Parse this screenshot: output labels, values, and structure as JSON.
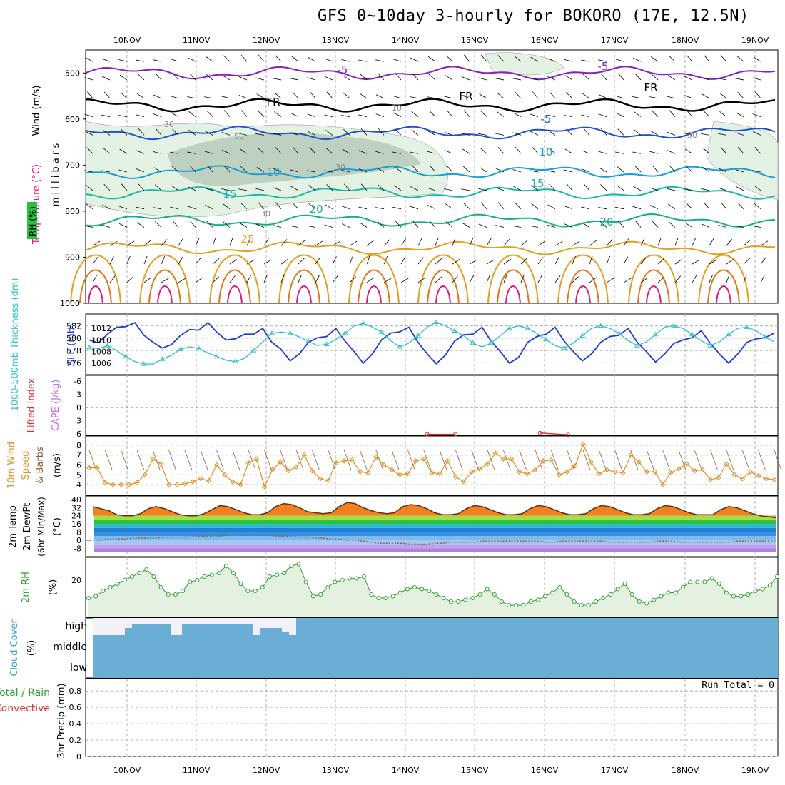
{
  "title": "GFS 0~10day 3-hourly for BOKORO (17E, 12.5N)",
  "date_labels": [
    "10NOV",
    "11NOV",
    "12NOV",
    "13NOV",
    "14NOV",
    "15NOV",
    "16NOV",
    "17NOV",
    "18NOV",
    "19NOV"
  ],
  "colors": {
    "wind_purple": "#8b1fb8",
    "freezing_black": "#000000",
    "temp_blue": "#1e50d0",
    "temp_cyan": "#14a0d8",
    "temp_teal": "#18b8a8",
    "temp_green": "#14b088",
    "temp_orange": "#e0a020",
    "temp_dark_orange": "#e07818",
    "temp_magenta": "#e01880",
    "rh_fill_light": "#e4f2e4",
    "rh_fill_dark": "#b4c8b8",
    "slp_line": "#1e3ed0",
    "thickness_line": "#30c0c8",
    "wind_speed_line": "#e09020",
    "wind_barbs": "#8b6040",
    "rh2m_line": "#30a030",
    "rh2m_fill": "#e4f0e0",
    "cloud_fill": "#6aaed6",
    "cloud_clear": "#f4f0f8",
    "grid_dash": "#b0b0b0",
    "zero_line": "#e04040"
  },
  "chart_data": [
    {
      "panel": "upper-air",
      "type": "heatmap",
      "y_axis": {
        "ticks": [
          500,
          600,
          700,
          800,
          900,
          1000
        ],
        "label": "m i l l i b a r s",
        "reversed": true
      },
      "side_labels": {
        "wind": "Wind (m/s)",
        "temperature": "Temperature (°C)",
        "rh": "RH (%)"
      },
      "contour_labels": {
        "temperature": [
          "-5",
          "-5",
          "FR",
          "FR",
          "FR",
          "-5",
          "10",
          "10",
          "15",
          "15",
          "20",
          "20",
          "25"
        ],
        "rh": [
          "30",
          "30",
          "50",
          "10",
          "30",
          "30"
        ]
      },
      "series": [
        {
          "name": "-5",
          "level_mb": 500
        },
        {
          "name": "FR",
          "level_mb": 570
        },
        {
          "name": "-5",
          "level_mb": 630
        },
        {
          "name": "10",
          "level_mb": 715
        },
        {
          "name": "15",
          "level_mb": 760
        },
        {
          "name": "20",
          "level_mb": 820
        },
        {
          "name": "25",
          "level_mb": 880
        }
      ]
    },
    {
      "panel": "slp-thickness",
      "type": "line",
      "labels": {
        "thickness": "1000-500mb Thickness (dm)",
        "slp": "SLP (mb)"
      },
      "left_ticks": [
        576,
        578,
        580,
        582
      ],
      "right_ticks": [
        1006,
        1008,
        1010,
        1012
      ],
      "series": [
        {
          "name": "SLP (mb)",
          "axis": "right",
          "values": [
            1010.0,
            1009.5,
            1011.0,
            1012.2,
            1012.3,
            1013.0,
            1010.8,
            1009.6,
            1008.6,
            1009.2,
            1010.8,
            1011.8,
            1011.7,
            1013.0,
            1011.3,
            1010.0,
            1010.2,
            1011.0,
            1011.0,
            1012.0,
            1009.6,
            1008.4,
            1006.4,
            1007.6,
            1009.6,
            1010.4,
            1010.6,
            1012.0,
            1009.8,
            1008.0,
            1006.0,
            1007.6,
            1010.0,
            1011.2,
            1011.4,
            1012.2,
            1009.6,
            1007.6,
            1005.9,
            1007.4,
            1009.8,
            1010.9,
            1011.0,
            1012.2,
            1009.8,
            1008.0,
            1006.0,
            1007.0,
            1009.6,
            1010.6,
            1011.0,
            1012.2,
            1009.8,
            1008.0,
            1006.4,
            1007.6,
            1009.6,
            1010.6,
            1010.8,
            1012.0,
            1009.6,
            1008.0,
            1006.2,
            1007.6,
            1009.4,
            1010.0,
            1010.4,
            1011.6,
            1009.4,
            1007.6,
            1006.0,
            1007.6,
            1009.6,
            1010.2,
            1010.4,
            1011.2
          ]
        },
        {
          "name": "Thickness (dm)",
          "axis": "left",
          "values": [
            578.5,
            578.3,
            578.8,
            578.0,
            577.0,
            576.2,
            575.8,
            575.8,
            576.6,
            577.2,
            578.2,
            578.6,
            578.3,
            577.6,
            577.0,
            576.4,
            576.2,
            576.7,
            578.0,
            579.4,
            580.8,
            581.0,
            580.8,
            580.2,
            579.5,
            578.8,
            579.0,
            579.8,
            580.8,
            582.0,
            582.4,
            581.8,
            581.0,
            579.6,
            578.6,
            579.2,
            580.4,
            581.8,
            582.6,
            582.0,
            581.2,
            580.4,
            579.2,
            578.6,
            579.2,
            580.4,
            581.6,
            582.0,
            581.6,
            580.8,
            579.8,
            578.8,
            578.4,
            579.2,
            580.4,
            581.6,
            582.0,
            581.6,
            580.8,
            579.6,
            578.8,
            579.4,
            580.6,
            581.8,
            582.0,
            581.6,
            580.6,
            579.6,
            578.8,
            579.4,
            580.6,
            581.6,
            581.8,
            581.2,
            580.2,
            579.4
          ]
        }
      ]
    },
    {
      "panel": "lifted-index-cape",
      "type": "line",
      "labels": {
        "li": "Lifted Index",
        "cape": "CAPE (J/kg)"
      },
      "ticks": [
        -6,
        -3,
        0,
        3,
        6
      ],
      "ticks_text": [
        "-6",
        "-3",
        "0",
        "3",
        "6"
      ],
      "series": [
        {
          "name": "Lifted Index",
          "points": [
            [
              24,
              6.1
            ],
            [
              26,
              6.1
            ],
            [
              32,
              5.8
            ],
            [
              34,
              6.2
            ]
          ]
        }
      ]
    },
    {
      "panel": "10m-wind",
      "type": "line",
      "labels": {
        "line1": "10m Wind",
        "line2": "Speed",
        "line3": "& Barbs",
        "unit": "(m/s)"
      },
      "ticks": [
        4,
        5,
        6,
        7,
        8
      ],
      "series": [
        {
          "name": "10m Wind Speed",
          "values": [
            5.7,
            5.7,
            4.2,
            4.0,
            4.0,
            4.0,
            4.2,
            5.0,
            6.6,
            6.1,
            4.0,
            4.0,
            4.1,
            4.3,
            4.6,
            4.4,
            6.0,
            5.0,
            4.3,
            4.0,
            6.2,
            6.6,
            3.8,
            5.5,
            6.3,
            5.4,
            5.8,
            7.0,
            5.4,
            4.6,
            4.4,
            6.2,
            6.4,
            6.5,
            5.3,
            5.2,
            6.8,
            6.0,
            5.5,
            5.0,
            5.1,
            6.4,
            6.6,
            5.2,
            5.1,
            6.4,
            4.8,
            4.3,
            5.3,
            5.6,
            6.1,
            7.2,
            6.6,
            6.6,
            5.3,
            5.1,
            5.5,
            6.4,
            6.5,
            5.0,
            5.3,
            5.9,
            8.1,
            6.3,
            5.1,
            5.5,
            5.3,
            5.2,
            7.0,
            6.3,
            5.3,
            5.3,
            4.0,
            5.2,
            5.6,
            6.1,
            5.4,
            5.5,
            4.5,
            4.7,
            6.1,
            5.0,
            4.6,
            5.3,
            4.9,
            4.6,
            4.5
          ]
        }
      ]
    },
    {
      "panel": "2m-temp",
      "type": "area",
      "labels": {
        "line1": "2m Temp",
        "line2": "2m DewPt",
        "line3": "(6hr Min/Max)",
        "unit": "(°C)"
      },
      "ticks": [
        -8,
        0,
        8,
        16,
        24,
        32,
        40
      ],
      "series": [
        {
          "name": "2m Temp",
          "values": [
            33,
            31,
            29,
            25,
            24,
            24,
            26,
            31,
            33,
            31,
            28,
            25,
            24,
            24,
            26,
            30,
            34,
            33,
            30,
            27,
            25,
            25,
            27,
            33,
            36,
            35,
            32,
            28,
            27,
            26,
            27,
            33,
            37,
            36,
            32,
            29,
            27,
            26,
            27,
            33,
            35,
            34,
            31,
            27,
            25,
            25,
            26,
            31,
            34,
            33,
            30,
            27,
            25,
            25,
            26,
            31,
            34,
            33,
            30,
            27,
            25,
            25,
            26,
            31,
            34,
            33,
            30,
            27,
            25,
            25,
            26,
            31,
            34,
            33,
            30,
            27,
            25,
            25,
            25,
            30,
            33,
            32,
            29,
            26,
            24,
            23,
            22
          ]
        },
        {
          "name": "2m DewPt",
          "values": [
            0,
            0,
            1,
            1,
            1,
            2,
            2,
            2,
            2,
            3,
            3,
            3,
            3,
            4,
            4,
            4,
            4,
            5,
            5,
            5,
            5,
            5,
            5,
            4,
            4,
            4,
            3,
            3,
            2,
            2,
            1,
            1,
            0,
            0,
            -1,
            -2,
            -3,
            -3,
            -3,
            -3,
            -4,
            -4,
            -4,
            -3,
            -3,
            -2,
            -2,
            -2,
            -2,
            -1,
            -1,
            -1,
            -1,
            -1,
            -1,
            -1,
            -1,
            -2,
            -2,
            -1,
            -1,
            -1,
            -1,
            -1,
            -1,
            -2,
            -2,
            -2,
            -2,
            -2,
            -2,
            -1,
            -1,
            -1,
            -2,
            -2,
            -2,
            -2,
            -2,
            -2,
            -2,
            -1,
            -1,
            -1,
            -1,
            -1,
            -1
          ]
        }
      ]
    },
    {
      "panel": "2m-rh",
      "type": "area",
      "labels": {
        "name": "2m RH",
        "unit": "(%)"
      },
      "ticks": [
        20
      ],
      "series": [
        {
          "name": "2m RH",
          "values": [
            10,
            11,
            14,
            16,
            18,
            20,
            22,
            24,
            26,
            22,
            16,
            12,
            12,
            14,
            19,
            20,
            22,
            23,
            24,
            28,
            24,
            18,
            14,
            14,
            16,
            22,
            23,
            24,
            28,
            29,
            19,
            11,
            12,
            16,
            19,
            20,
            21,
            21,
            22,
            12,
            10,
            10,
            11,
            13,
            15,
            16,
            15,
            14,
            12,
            10,
            8,
            8,
            9,
            10,
            12,
            15,
            12,
            8,
            6,
            6,
            6,
            8,
            9,
            11,
            13,
            16,
            12,
            8,
            6,
            6,
            8,
            10,
            12,
            15,
            18,
            12,
            8,
            7,
            9,
            11,
            13,
            13,
            16,
            19,
            19,
            19,
            21,
            18,
            13,
            11,
            11,
            12,
            14,
            15,
            17,
            22
          ]
        }
      ]
    },
    {
      "panel": "cloud-cover",
      "type": "area",
      "labels": {
        "name": "Cloud Cover",
        "unit": "(%)"
      },
      "levels": [
        "high",
        "middle",
        "low"
      ]
    },
    {
      "panel": "precip",
      "type": "bar",
      "labels": {
        "line1": "Total / Rain",
        "line2": "Convective",
        "unit": "3hr Precip (mm)"
      },
      "ticks": [
        0,
        0.2,
        0.4,
        0.6,
        0.8
      ],
      "ticks_text": [
        "0",
        "0.2",
        "0.4",
        "0.6",
        "0.8"
      ],
      "run_total": "Run Total = 0",
      "values": []
    }
  ]
}
